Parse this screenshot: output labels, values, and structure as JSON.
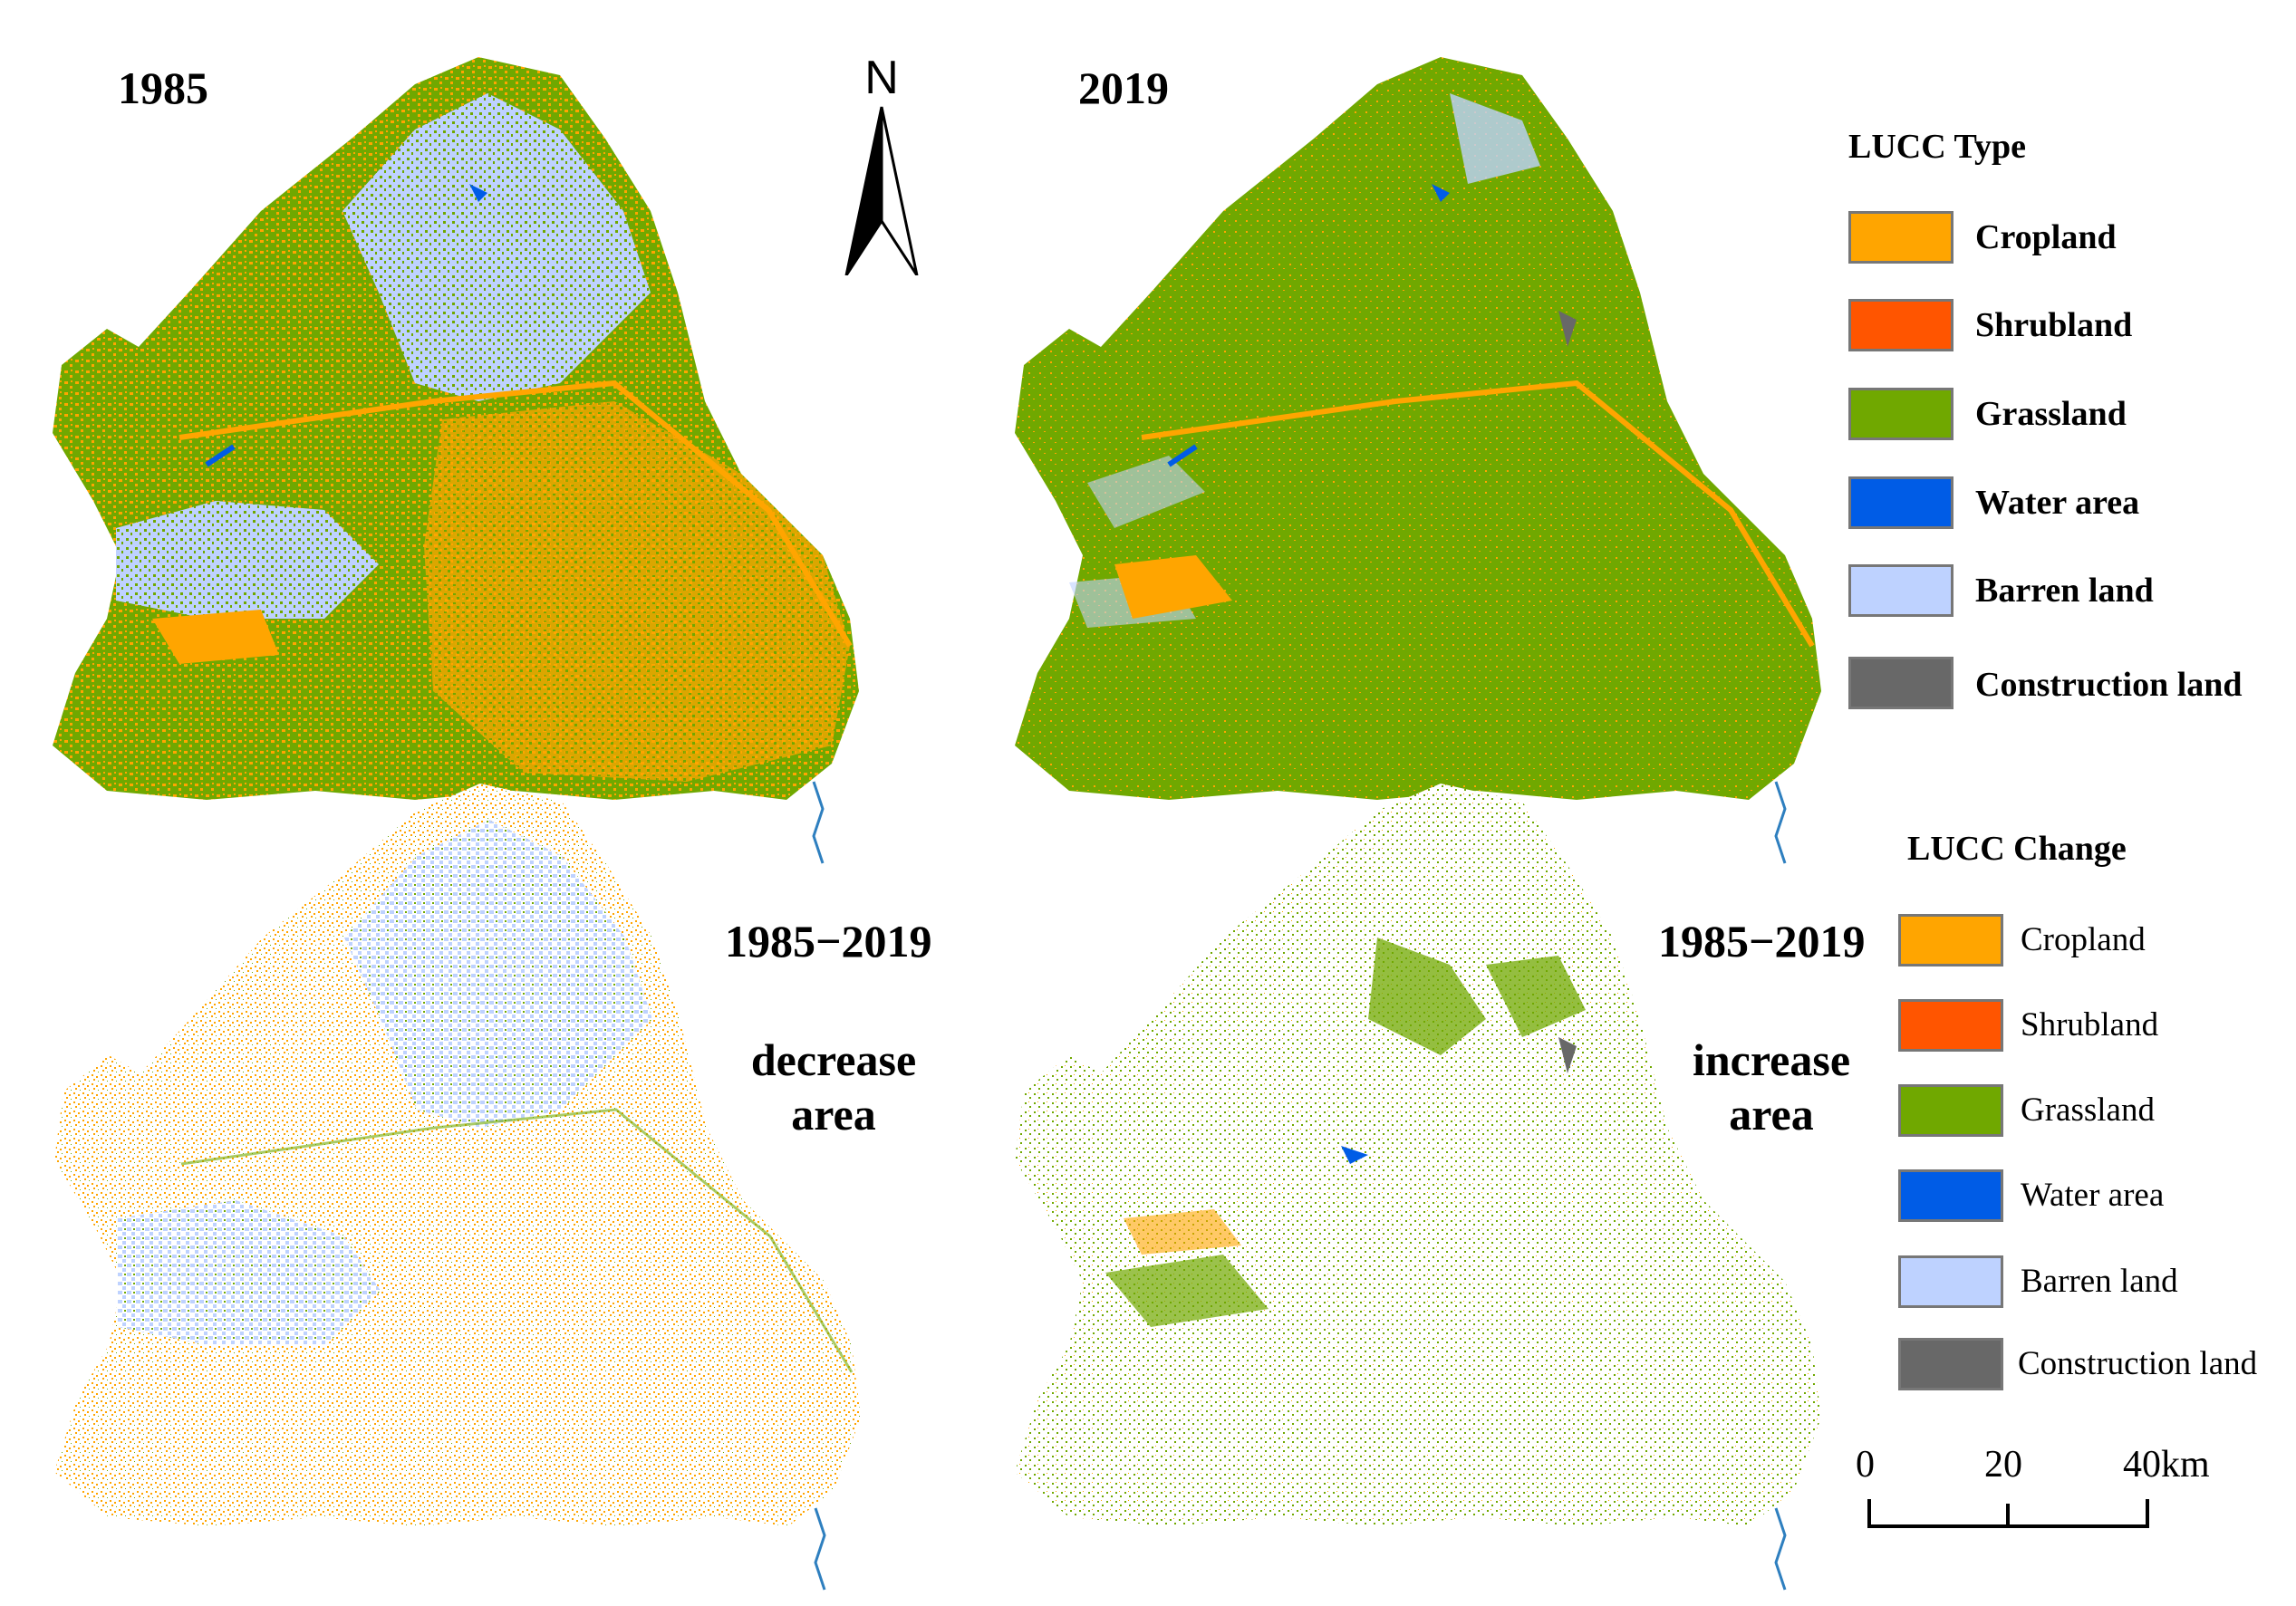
{
  "panels": {
    "top_left_year": "1985",
    "top_right_year": "2019",
    "bottom_left_period": "1985−2019",
    "bottom_left_desc_1": "decrease",
    "bottom_left_desc_2": "area",
    "bottom_right_period": "1985−2019",
    "bottom_right_desc_1": "increase",
    "bottom_right_desc_2": "area"
  },
  "north_arrow": {
    "label": "N",
    "icon": "north-arrow-icon"
  },
  "legend_type": {
    "title": "LUCC Type",
    "items": [
      {
        "label": "Cropland",
        "color": "#FFA500"
      },
      {
        "label": "Shrubland",
        "color": "#FF5500"
      },
      {
        "label": "Grassland",
        "color": "#70A800"
      },
      {
        "label": "Water area",
        "color": "#005CE6"
      },
      {
        "label": "Barren land",
        "color": "#BED2FF"
      },
      {
        "label": "Construction land",
        "color": "#686868"
      }
    ]
  },
  "legend_change": {
    "title": "LUCC Change",
    "items": [
      {
        "label": "Cropland",
        "color": "#FFA500"
      },
      {
        "label": "Shrubland",
        "color": "#FF5500"
      },
      {
        "label": "Grassland",
        "color": "#70A800"
      },
      {
        "label": "Water area",
        "color": "#005CE6"
      },
      {
        "label": "Barren land",
        "color": "#BED2FF"
      },
      {
        "label": "Construction land",
        "color": "#686868"
      }
    ]
  },
  "scale_bar": {
    "tick_0": "0",
    "tick_1": "20",
    "tick_2": "40",
    "unit": "km"
  }
}
